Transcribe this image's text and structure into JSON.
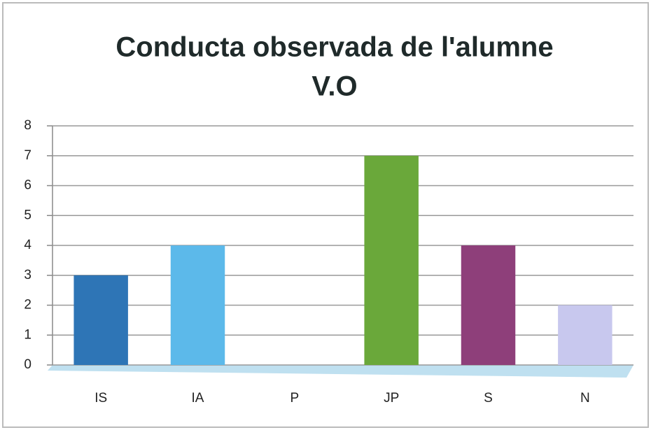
{
  "chart_data": {
    "type": "bar",
    "title": [
      "Conducta observada de l'alumne",
      "V.O"
    ],
    "categories": [
      "IS",
      "IA",
      "P",
      "JP",
      "S",
      "N"
    ],
    "values": [
      3,
      4,
      0,
      7,
      4,
      2
    ],
    "colors": [
      "#2e75b6",
      "#5cb9ea",
      "#8fc3e8",
      "#6aa83a",
      "#8e3f7a",
      "#c8c8ee"
    ],
    "ylim": [
      0,
      8
    ],
    "yticks": [
      0,
      1,
      2,
      3,
      4,
      5,
      6,
      7,
      8
    ],
    "grid": true
  }
}
